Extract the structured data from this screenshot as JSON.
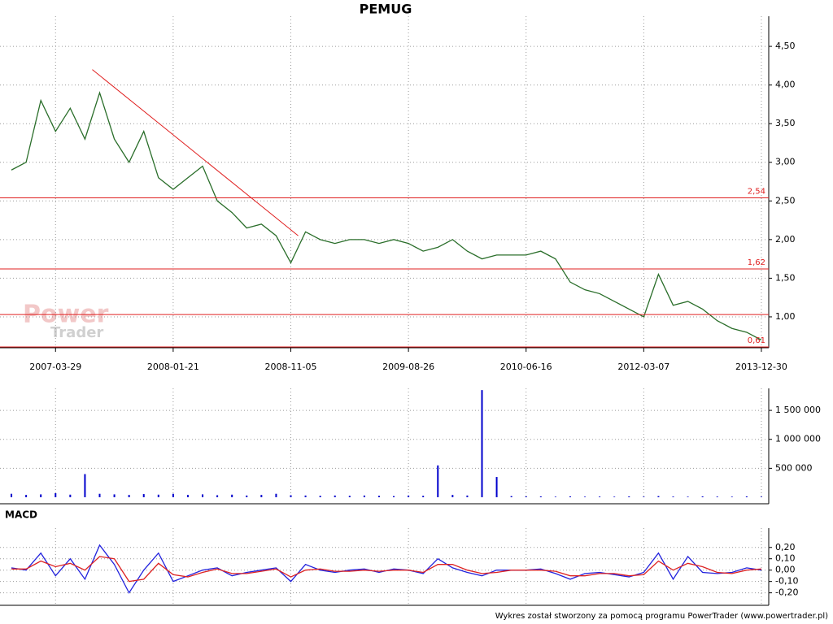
{
  "chart_data": [
    {
      "type": "line",
      "title": "PEMUG",
      "categories": [
        null,
        null,
        null,
        "2007-03-29",
        null,
        null,
        null,
        null,
        null,
        null,
        null,
        "2008-01-21",
        null,
        null,
        null,
        null,
        null,
        null,
        null,
        "2008-11-05",
        null,
        null,
        null,
        null,
        null,
        null,
        null,
        "2009-08-26",
        null,
        null,
        null,
        null,
        null,
        null,
        null,
        "2010-06-16",
        null,
        null,
        null,
        null,
        null,
        null,
        null,
        "2012-03-07",
        null,
        null,
        null,
        null,
        null,
        null,
        null,
        "2013-12-30"
      ],
      "values": [
        2.9,
        3.0,
        3.8,
        3.4,
        3.7,
        3.3,
        3.9,
        3.3,
        3.0,
        3.4,
        2.8,
        2.65,
        2.8,
        2.95,
        2.5,
        2.35,
        2.15,
        2.2,
        2.05,
        1.7,
        2.1,
        2.0,
        1.95,
        2.0,
        2.0,
        1.95,
        2.0,
        1.95,
        1.85,
        1.9,
        2.0,
        1.85,
        1.75,
        1.8,
        1.8,
        1.8,
        1.85,
        1.75,
        1.45,
        1.35,
        1.3,
        1.2,
        1.1,
        1.0,
        1.55,
        1.15,
        1.2,
        1.1,
        0.95,
        0.85,
        0.8,
        0.7
      ],
      "color": "#2a6e2a",
      "ylim": [
        0.6,
        4.89
      ],
      "yticks": [
        {
          "value": 1,
          "label": "1,00"
        },
        {
          "value": 1.5,
          "label": "1,50"
        },
        {
          "value": 2,
          "label": "2,00"
        },
        {
          "value": 2.5,
          "label": "2,50"
        },
        {
          "value": 3,
          "label": "3,00"
        },
        {
          "value": 3.5,
          "label": "3,50"
        },
        {
          "value": 4,
          "label": "4,00"
        },
        {
          "value": 4.5,
          "label": "4,50"
        }
      ],
      "levels": [
        {
          "value": 2.54,
          "label": "2,54"
        },
        {
          "value": 1.62,
          "label": "1,62"
        },
        1.03,
        {
          "value": 0.61,
          "label": "0,61"
        }
      ],
      "level_color": "#e02020",
      "trend_line": [
        4.2,
        2.05
      ],
      "grid": true
    },
    {
      "type": "bar",
      "values": [
        60000,
        40000,
        50000,
        70000,
        45000,
        400000,
        60000,
        50000,
        40000,
        55000,
        45000,
        60000,
        40000,
        50000,
        35000,
        45000,
        30000,
        40000,
        60000,
        35000,
        30000,
        25000,
        30000,
        25000,
        30000,
        25000,
        20000,
        30000,
        25000,
        550000,
        40000,
        30000,
        1850000,
        350000,
        20000,
        15000,
        15000,
        10000,
        15000,
        10000,
        12000,
        10000,
        15000,
        10000,
        20000,
        12000,
        10000,
        15000,
        12000,
        10000,
        15000,
        10000
      ],
      "color": "#0000cc",
      "ylim": [
        0,
        1880000
      ],
      "yticks": [
        {
          "value": 500000,
          "label": "500 000"
        },
        {
          "value": 1000000,
          "label": "1 000 000"
        },
        {
          "value": 1500000,
          "label": "1 500 000"
        }
      ],
      "grid": true
    },
    {
      "type": "line",
      "title": "MACD",
      "series": [
        {
          "color": "#2222dd",
          "values": [
            0.02,
            0.0,
            0.15,
            -0.05,
            0.1,
            -0.08,
            0.22,
            0.05,
            -0.2,
            0.0,
            0.15,
            -0.1,
            -0.05,
            0.0,
            0.02,
            -0.05,
            -0.02,
            0.0,
            0.02,
            -0.1,
            0.05,
            0.0,
            -0.02,
            0.0,
            0.01,
            -0.02,
            0.01,
            0.0,
            -0.03,
            0.1,
            0.02,
            -0.02,
            -0.05,
            0.0,
            0.0,
            0.0,
            0.01,
            -0.03,
            -0.08,
            -0.03,
            -0.02,
            -0.04,
            -0.06,
            -0.02,
            0.15,
            -0.08,
            0.12,
            -0.02,
            -0.03,
            -0.02,
            0.02,
            0.0
          ]
        },
        {
          "color": "#dd2222",
          "values": [
            0.01,
            0.01,
            0.08,
            0.03,
            0.06,
            0.0,
            0.12,
            0.1,
            -0.1,
            -0.08,
            0.06,
            -0.04,
            -0.06,
            -0.02,
            0.01,
            -0.03,
            -0.03,
            -0.01,
            0.01,
            -0.06,
            0.0,
            0.01,
            -0.01,
            -0.01,
            0.0,
            -0.01,
            0.0,
            0.0,
            -0.02,
            0.05,
            0.05,
            0.0,
            -0.03,
            -0.02,
            0.0,
            0.0,
            0.0,
            -0.01,
            -0.05,
            -0.05,
            -0.03,
            -0.03,
            -0.05,
            -0.04,
            0.08,
            0.0,
            0.06,
            0.03,
            -0.02,
            -0.03,
            0.0,
            0.01
          ]
        }
      ],
      "ylim": [
        -0.31,
        0.37
      ],
      "yticks": [
        {
          "value": -0.2,
          "label": "-0,20"
        },
        {
          "value": -0.1,
          "label": "-0,10"
        },
        {
          "value": 0,
          "label": "0,00"
        },
        {
          "value": 0.1,
          "label": "0,10"
        },
        {
          "value": 0.2,
          "label": "0,20"
        }
      ],
      "grid": true
    }
  ],
  "watermark": [
    "Power",
    "Trader"
  ],
  "footer": "Wykres został stworzony za pomocą programu PowerTrader (www.powertrader.pl)"
}
